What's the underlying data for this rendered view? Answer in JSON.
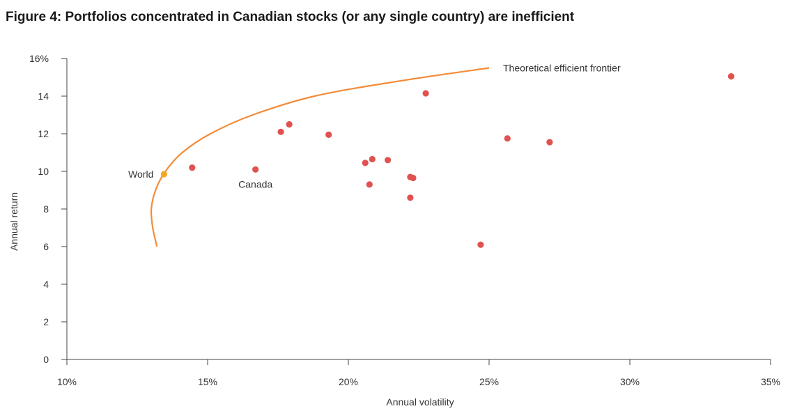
{
  "chart_data": {
    "type": "scatter",
    "title": "Figure 4: Portfolios concentrated in Canadian stocks (or any single country) are inefficient",
    "xlabel": "Annual volatility",
    "ylabel": "Annual return",
    "xlim": [
      10,
      35
    ],
    "ylim": [
      0,
      16
    ],
    "x_ticks": [
      10,
      15,
      20,
      25,
      30,
      35
    ],
    "x_tick_labels": [
      "10%",
      "15%",
      "20%",
      "25%",
      "30%",
      "35%"
    ],
    "y_ticks": [
      0,
      2,
      4,
      6,
      8,
      10,
      12,
      14,
      16
    ],
    "y_tick_labels": [
      "0",
      "2",
      "4",
      "6",
      "8",
      "10",
      "12",
      "14",
      "16%"
    ],
    "grid": false,
    "frontier": {
      "label": "Theoretical efficient frontier",
      "color": "#f28c3a",
      "points": [
        [
          13.2,
          6.0
        ],
        [
          13.05,
          7.0
        ],
        [
          13.0,
          8.0
        ],
        [
          13.15,
          9.0
        ],
        [
          13.5,
          10.0
        ],
        [
          14.1,
          11.0
        ],
        [
          15.1,
          12.0
        ],
        [
          16.6,
          13.0
        ],
        [
          18.8,
          14.0
        ],
        [
          21.8,
          14.8
        ],
        [
          25.0,
          15.5
        ]
      ]
    },
    "points_color": "#e0524f",
    "highlight_color": "#f5a623",
    "points": [
      {
        "x": 13.45,
        "y": 9.85,
        "label": "World",
        "highlight": true
      },
      {
        "x": 14.45,
        "y": 10.2,
        "label": ""
      },
      {
        "x": 16.7,
        "y": 10.1,
        "label": "Canada"
      },
      {
        "x": 17.6,
        "y": 12.1,
        "label": ""
      },
      {
        "x": 17.9,
        "y": 12.5,
        "label": ""
      },
      {
        "x": 19.3,
        "y": 11.95,
        "label": ""
      },
      {
        "x": 20.6,
        "y": 10.45,
        "label": ""
      },
      {
        "x": 20.85,
        "y": 10.65,
        "label": ""
      },
      {
        "x": 21.4,
        "y": 10.6,
        "label": ""
      },
      {
        "x": 20.75,
        "y": 9.3,
        "label": ""
      },
      {
        "x": 22.2,
        "y": 9.7,
        "label": ""
      },
      {
        "x": 22.3,
        "y": 9.65,
        "label": ""
      },
      {
        "x": 22.2,
        "y": 8.6,
        "label": ""
      },
      {
        "x": 22.75,
        "y": 14.15,
        "label": ""
      },
      {
        "x": 24.7,
        "y": 6.1,
        "label": ""
      },
      {
        "x": 25.65,
        "y": 11.75,
        "label": ""
      },
      {
        "x": 27.15,
        "y": 11.55,
        "label": ""
      },
      {
        "x": 33.6,
        "y": 15.05,
        "label": ""
      }
    ]
  }
}
